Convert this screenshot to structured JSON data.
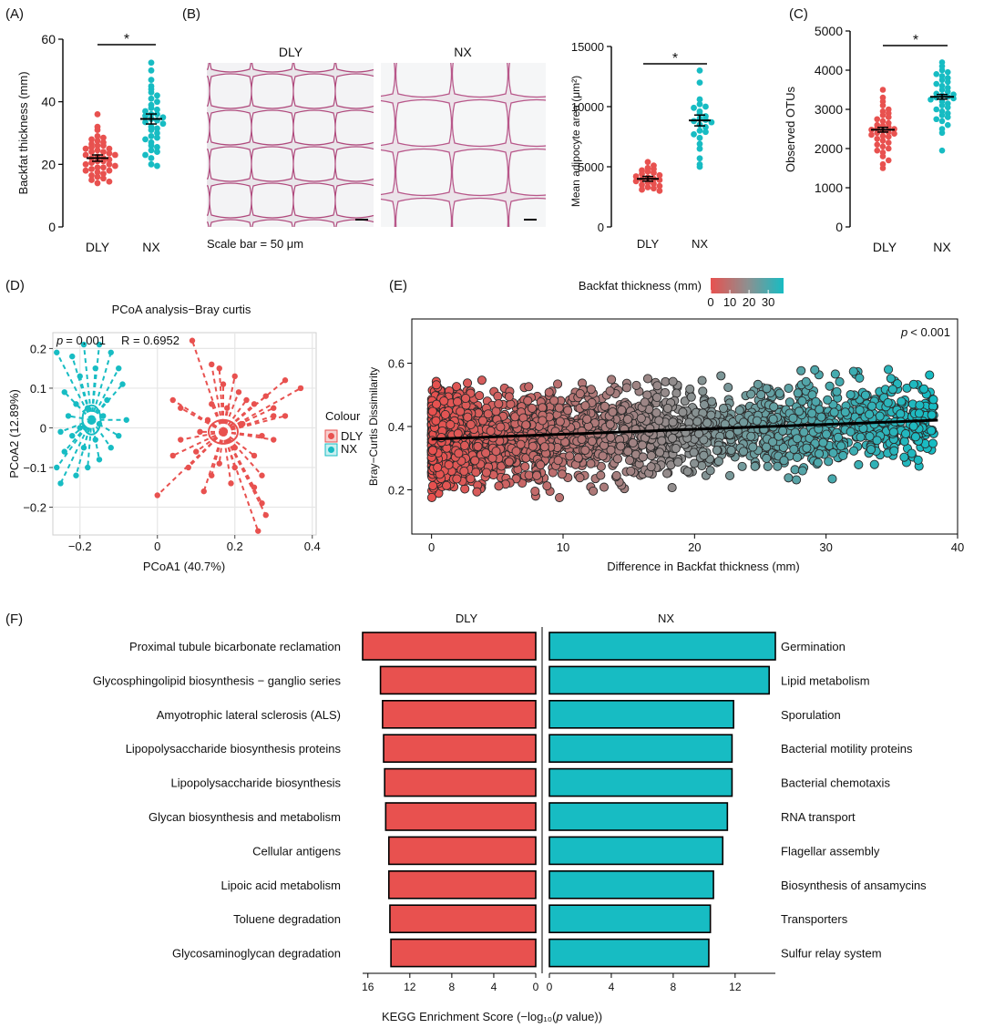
{
  "colors": {
    "dly": "#e8514f",
    "nx": "#17bcc3",
    "grad_mid": "#8f8f8f"
  },
  "panel_labels": [
    "(A)",
    "(B)",
    "(C)",
    "(D)",
    "(E)",
    "(F)"
  ],
  "sig_marker": "*",
  "chart_data": [
    {
      "id": "A",
      "type": "scatter",
      "ylabel": "Backfat thickness (mm)",
      "categories": [
        "DLY",
        "NX"
      ],
      "ylim": [
        0,
        60
      ],
      "yticks": [
        0,
        20,
        40,
        60
      ],
      "means": [
        22,
        34.5
      ],
      "sem": [
        1.0,
        1.6
      ],
      "series": [
        {
          "name": "DLY",
          "values": [
            36,
            32,
            31,
            29,
            28.5,
            28,
            27.5,
            27,
            26.5,
            26,
            26,
            25.5,
            25,
            25,
            24.5,
            24,
            24,
            23.5,
            23,
            23,
            22.5,
            22,
            22,
            21.5,
            21,
            21,
            20.5,
            20,
            20,
            19.5,
            19,
            19,
            18.5,
            18,
            18,
            17.5,
            17,
            16.5,
            16,
            15.5,
            15,
            14.5,
            14
          ]
        },
        {
          "name": "NX",
          "values": [
            52.5,
            50,
            47,
            45,
            44,
            43,
            42,
            41,
            40,
            39,
            38,
            37.5,
            37,
            36,
            36,
            35.5,
            35,
            34.5,
            34,
            33.5,
            33,
            32,
            31.5,
            31,
            30,
            29,
            28.5,
            28,
            27,
            26,
            25.5,
            24.5,
            24,
            23,
            22,
            20,
            19.5
          ]
        }
      ]
    },
    {
      "id": "B-micro",
      "type": "image",
      "titles": [
        "DLY",
        "NX"
      ],
      "caption": "Scale bar = 50 μm"
    },
    {
      "id": "B",
      "type": "scatter",
      "ylabel": "Mean adipocyte area  (μm²)",
      "categories": [
        "DLY",
        "NX"
      ],
      "ylim": [
        0,
        15000
      ],
      "yticks": [
        0,
        5000,
        10000,
        15000
      ],
      "means": [
        4000,
        8850
      ],
      "sem": [
        200,
        450
      ],
      "series": [
        {
          "name": "DLY",
          "values": [
            5400,
            5100,
            4900,
            4800,
            4700,
            4600,
            4500,
            4400,
            4300,
            4200,
            4100,
            4000,
            3950,
            3900,
            3800,
            3700,
            3600,
            3500,
            3400,
            3300,
            3200,
            3100,
            3000
          ]
        },
        {
          "name": "NX",
          "values": [
            13000,
            12000,
            10600,
            10200,
            10000,
            9900,
            9600,
            9400,
            9200,
            9000,
            8900,
            8800,
            8700,
            8500,
            8300,
            8000,
            7900,
            7700,
            7400,
            6900,
            6500,
            5700,
            5200,
            5000
          ]
        }
      ]
    },
    {
      "id": "C",
      "type": "scatter",
      "ylabel": "Observed OTUs",
      "categories": [
        "DLY",
        "NX"
      ],
      "ylim": [
        0,
        5000
      ],
      "yticks": [
        0,
        1000,
        2000,
        3000,
        4000,
        5000
      ],
      "means": [
        2480,
        3320
      ],
      "sem": [
        60,
        60
      ],
      "series": [
        {
          "name": "DLY",
          "values": [
            3500,
            3300,
            3200,
            3100,
            3000,
            2950,
            2900,
            2850,
            2800,
            2750,
            2700,
            2650,
            2600,
            2580,
            2550,
            2520,
            2500,
            2480,
            2450,
            2420,
            2400,
            2380,
            2350,
            2320,
            2300,
            2250,
            2200,
            2150,
            2100,
            2050,
            2000,
            1950,
            1900,
            1800,
            1700,
            1600,
            1500
          ]
        },
        {
          "name": "NX",
          "values": [
            4200,
            4100,
            4000,
            3950,
            3900,
            3850,
            3800,
            3750,
            3700,
            3650,
            3600,
            3550,
            3500,
            3450,
            3400,
            3380,
            3350,
            3320,
            3300,
            3280,
            3250,
            3200,
            3150,
            3100,
            3050,
            3000,
            2950,
            2900,
            2850,
            2800,
            2750,
            2700,
            2600,
            2500,
            2400,
            1950
          ]
        }
      ]
    },
    {
      "id": "D",
      "type": "scatter",
      "title": "PCoA analysis−Bray curtis",
      "xlabel": "PCoA1 (40.7%)",
      "ylabel": "PCoA2 (12.89%)",
      "xlim": [
        -0.27,
        0.41
      ],
      "ylim": [
        -0.27,
        0.24
      ],
      "xticks": [
        -0.2,
        0.0,
        0.2,
        0.4
      ],
      "yticks": [
        -0.2,
        -0.1,
        0.0,
        0.1,
        0.2
      ],
      "stat_p_label": "p",
      "stat_p": "= 0.001",
      "stat_r": "R = 0.6952",
      "legend_title": "Colour",
      "centroids": {
        "DLY": [
          0.17,
          -0.01
        ],
        "NX": [
          -0.17,
          0.02
        ]
      },
      "series": [
        {
          "name": "DLY",
          "points": [
            [
              0.09,
              0.22
            ],
            [
              0.14,
              0.16
            ],
            [
              0.16,
              0.15
            ],
            [
              0.17,
              0.11
            ],
            [
              0.2,
              0.13
            ],
            [
              0.21,
              0.09
            ],
            [
              0.23,
              0.07
            ],
            [
              0.25,
              0.06
            ],
            [
              0.28,
              0.08
            ],
            [
              0.3,
              0.05
            ],
            [
              0.33,
              0.12
            ],
            [
              0.37,
              0.1
            ],
            [
              0.3,
              0.03
            ],
            [
              0.27,
              -0.02
            ],
            [
              0.25,
              -0.07
            ],
            [
              0.27,
              -0.12
            ],
            [
              0.25,
              -0.15
            ],
            [
              0.27,
              -0.19
            ],
            [
              0.28,
              -0.22
            ],
            [
              0.26,
              -0.26
            ],
            [
              0.2,
              -0.1
            ],
            [
              0.19,
              -0.14
            ],
            [
              0.16,
              -0.09
            ],
            [
              0.14,
              -0.12
            ],
            [
              0.1,
              -0.06
            ],
            [
              0.08,
              -0.1
            ],
            [
              0.06,
              -0.03
            ],
            [
              0.04,
              -0.07
            ],
            [
              0.04,
              0.07
            ],
            [
              0.06,
              0.05
            ],
            [
              0.0,
              -0.17
            ],
            [
              0.11,
              -0.01
            ],
            [
              0.13,
              0.02
            ],
            [
              0.22,
              0.01
            ],
            [
              0.18,
              0.05
            ],
            [
              0.14,
              0.06
            ],
            [
              0.2,
              -0.05
            ],
            [
              0.12,
              -0.16
            ],
            [
              0.3,
              -0.03
            ],
            [
              0.33,
              0.03
            ]
          ]
        },
        {
          "name": "NX",
          "points": [
            [
              -0.26,
              0.19
            ],
            [
              -0.22,
              0.18
            ],
            [
              -0.19,
              0.21
            ],
            [
              -0.15,
              0.21
            ],
            [
              -0.12,
              0.19
            ],
            [
              -0.1,
              0.15
            ],
            [
              -0.09,
              0.11
            ],
            [
              -0.2,
              0.13
            ],
            [
              -0.16,
              0.15
            ],
            [
              -0.24,
              0.09
            ],
            [
              -0.23,
              0.03
            ],
            [
              -0.25,
              -0.01
            ],
            [
              -0.24,
              -0.06
            ],
            [
              -0.26,
              -0.1
            ],
            [
              -0.25,
              -0.14
            ],
            [
              -0.21,
              -0.12
            ],
            [
              -0.18,
              -0.1
            ],
            [
              -0.15,
              -0.08
            ],
            [
              -0.12,
              -0.05
            ],
            [
              -0.1,
              -0.02
            ],
            [
              -0.08,
              0.02
            ],
            [
              -0.13,
              0.07
            ],
            [
              -0.18,
              0.05
            ],
            [
              -0.2,
              0.0
            ],
            [
              -0.15,
              0.01
            ],
            [
              -0.16,
              -0.03
            ],
            [
              -0.14,
              0.03
            ],
            [
              -0.19,
              -0.05
            ],
            [
              -0.22,
              -0.02
            ],
            [
              -0.21,
              0.06
            ]
          ]
        }
      ]
    },
    {
      "id": "E",
      "type": "scatter",
      "xlabel": "Difference in Backfat thickness (mm)",
      "ylabel": "Bray−Curtis Dissimilarity",
      "xlim": [
        -1.5,
        40
      ],
      "ylim": [
        0.06,
        0.74
      ],
      "xticks": [
        0,
        10,
        20,
        30,
        40
      ],
      "yticks": [
        0.2,
        0.4,
        0.6
      ],
      "p_symbol": "p",
      "p_label": "< 0.001",
      "colorbar_title": "Backfat thickness (mm)",
      "colorbar_ticks": [
        0,
        10,
        20,
        30
      ],
      "colorbar_max": 38,
      "trend": {
        "x0": 0,
        "y0": 0.36,
        "x1": 38.5,
        "y1": 0.42
      },
      "n_points": 2600,
      "seed": 7
    },
    {
      "id": "F",
      "type": "bar",
      "xlabel_prefix": "KEGG Enrichment Score (−log₁₀(",
      "xlabel_p": "p",
      "xlabel_suffix": " value))",
      "left_title": "DLY",
      "right_title": "NX",
      "left_max": 16.5,
      "right_max": 14.6,
      "left_ticks": [
        16,
        12,
        8,
        4,
        0
      ],
      "right_ticks": [
        0,
        4,
        8,
        12
      ],
      "highlight_color": "#e02020",
      "series": [
        {
          "name": "DLY",
          "categories": [
            "Proximal tubule bicarbonate reclamation",
            "Glycosphingolipid biosynthesis − ganglio series",
            "Amyotrophic lateral sclerosis (ALS)",
            "Lipopolysaccharide biosynthesis proteins",
            "Lipopolysaccharide biosynthesis",
            "Glycan biosynthesis and metabolism",
            "Cellular antigens",
            "Lipoic acid metabolism",
            "Toluene degradation",
            "Glycosaminoglycan degradation"
          ],
          "values": [
            16.5,
            14.8,
            14.6,
            14.5,
            14.4,
            14.3,
            14.0,
            14.0,
            13.9,
            13.8
          ]
        },
        {
          "name": "NX",
          "categories": [
            "Germination",
            "Lipid metabolism",
            "Sporulation",
            "Bacterial motility proteins",
            "Bacterial chemotaxis",
            "RNA transport",
            "Flagellar assembly",
            "Biosynthesis of ansamycins",
            "Transporters",
            "Sulfur relay system"
          ],
          "values": [
            14.6,
            14.2,
            11.9,
            11.8,
            11.8,
            11.5,
            11.2,
            10.6,
            10.4,
            10.3
          ],
          "highlight_index": 1
        }
      ]
    }
  ]
}
